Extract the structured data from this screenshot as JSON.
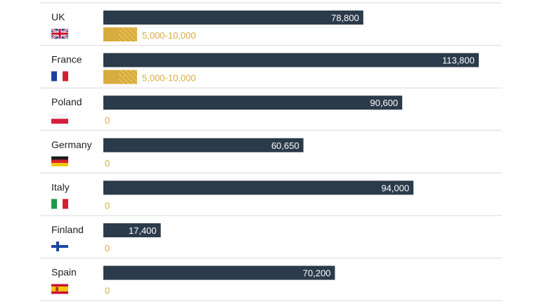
{
  "colors": {
    "primary_bar": "#2b3b4b",
    "secondary_bar": "#d8ac3d",
    "secondary_text": "#d8ac3d",
    "row_separator": "#d9d9d9",
    "label_text": "#1f1f1f"
  },
  "chart_data": {
    "type": "bar",
    "orientation": "horizontal",
    "title": "",
    "xlabel": "",
    "ylabel": "",
    "xlim": [
      0,
      120000
    ],
    "grid": false,
    "legend": "none",
    "categories": [
      "UK",
      "France",
      "Poland",
      "Germany",
      "Italy",
      "Finland",
      "Spain"
    ],
    "flags": [
      "uk-flag-icon",
      "france-flag-icon",
      "poland-flag-icon",
      "germany-flag-icon",
      "italy-flag-icon",
      "finland-flag-icon",
      "spain-flag-icon"
    ],
    "series": [
      {
        "values": [
          78800,
          113800,
          90600,
          60650,
          94000,
          17400,
          70200
        ],
        "labels": [
          "78,800",
          "113,800",
          "90,600",
          "60,650",
          "94,000",
          "17,400",
          "70,200"
        ]
      },
      {
        "ranges": [
          [
            5000,
            10000
          ],
          [
            5000,
            10000
          ],
          [
            0,
            0
          ],
          [
            0,
            0
          ],
          [
            0,
            0
          ],
          [
            0,
            0
          ],
          [
            0,
            0
          ]
        ],
        "labels": [
          "5,000-10,000",
          "5,000-10,000",
          "0",
          "0",
          "0",
          "0",
          "0"
        ]
      }
    ]
  }
}
